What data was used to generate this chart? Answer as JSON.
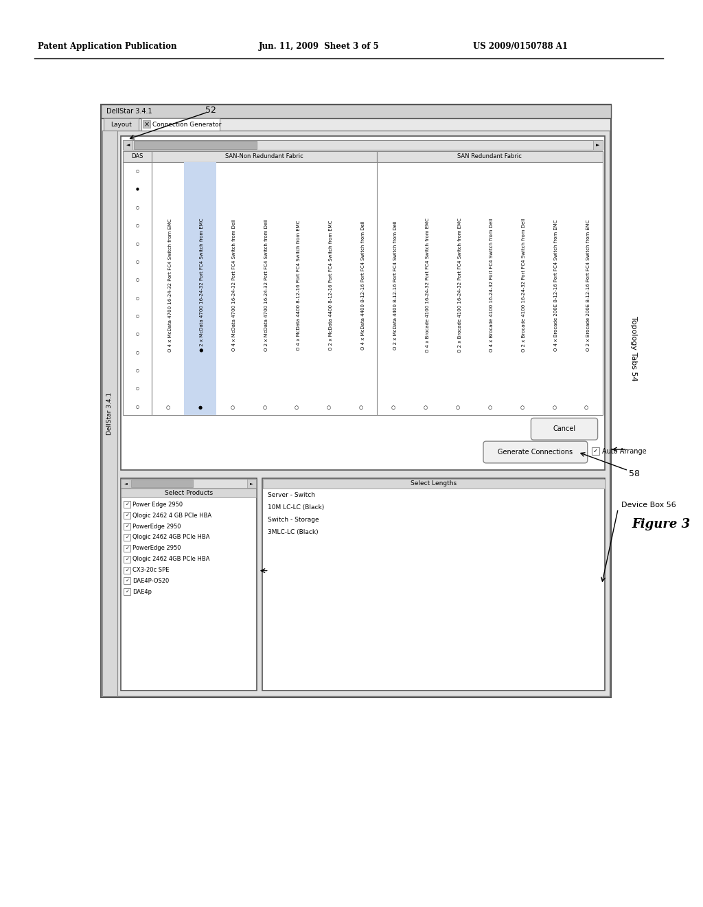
{
  "bg_color": "#ffffff",
  "header_left": "Patent Application Publication",
  "header_center": "Jun. 11, 2009  Sheet 3 of 5",
  "header_right": "US 2009/0150788 A1",
  "figure_label": "Figure 3",
  "label_52": "52",
  "label_54": "Topology Tabs 54",
  "label_56": "Device Box 56",
  "label_58": "58",
  "app_title": "DellStar 3.4.1",
  "tab_layout": "Layout",
  "tab_connection": "Connection Generator",
  "list_items": [
    "O 4 x McData 4700 16-24-32 Port FC4 Switch from EMC",
    "● 2 x McData 4700 16-24-32 Port FC4 Switch from EMC",
    "O 4 x McData 4700 16-24-32 Port FC4 Switch from Dell",
    "O 2 x McData 4700 16-24-32 Port FC4 Switch from Dell",
    "O 4 x McData 4400 8-12-16 Port FC4 Switch from EMC",
    "O 2 x McData 4400 8-12-16 Port FC4 Switch from EMC",
    "O 4 x McData 4400 8-12-16 Port FC4 Switch from Dell",
    "O 2 x McData 4400 8-12-16 Port FC4 Switch from Dell",
    "O 4 x Brocade 4100 16-24-32 Port FC4 Switch from EMC",
    "O 2 x Brocade 4100 16-24-32 Port FC4 Switch from EMC",
    "O 4 x Brocade 4100 16-24-32 Port FC4 Switch from Dell",
    "O 2 x Brocade 4100 16-24-32 Port FC4 Switch from Dell",
    "O 4 x Brocade 200E 8-12-16 Port FC4 Switch from EMC",
    "O 2 x Brocade 200E 8-12-16 Port FC4 Switch from EMC"
  ],
  "col_headers": [
    "DAS",
    "SAN-Non Redundant Fabric",
    "SAN Redundant Fabric"
  ],
  "select_products": [
    "Power Edge 2950",
    "Qlogic 2462 4 GB PCIe HBA",
    "PowerEdge 2950",
    "Qlogic 2462 4GB PCIe HBA",
    "PowerEdge 2950",
    "Qlogic 2462 4GB PCIe HBA",
    "CX3-20c SPE",
    "DAE4P-OS20",
    "DAE4p"
  ],
  "select_lengths_header": "Select Lengths",
  "length_items": [
    "Server - Switch",
    "10M LC-LC (Black)",
    "Switch - Storage",
    "3MLC-LC (Black)"
  ],
  "btn_cancel": "Cancel",
  "btn_generate": "Generate Connections",
  "chk_auto": "Auto Arrange"
}
